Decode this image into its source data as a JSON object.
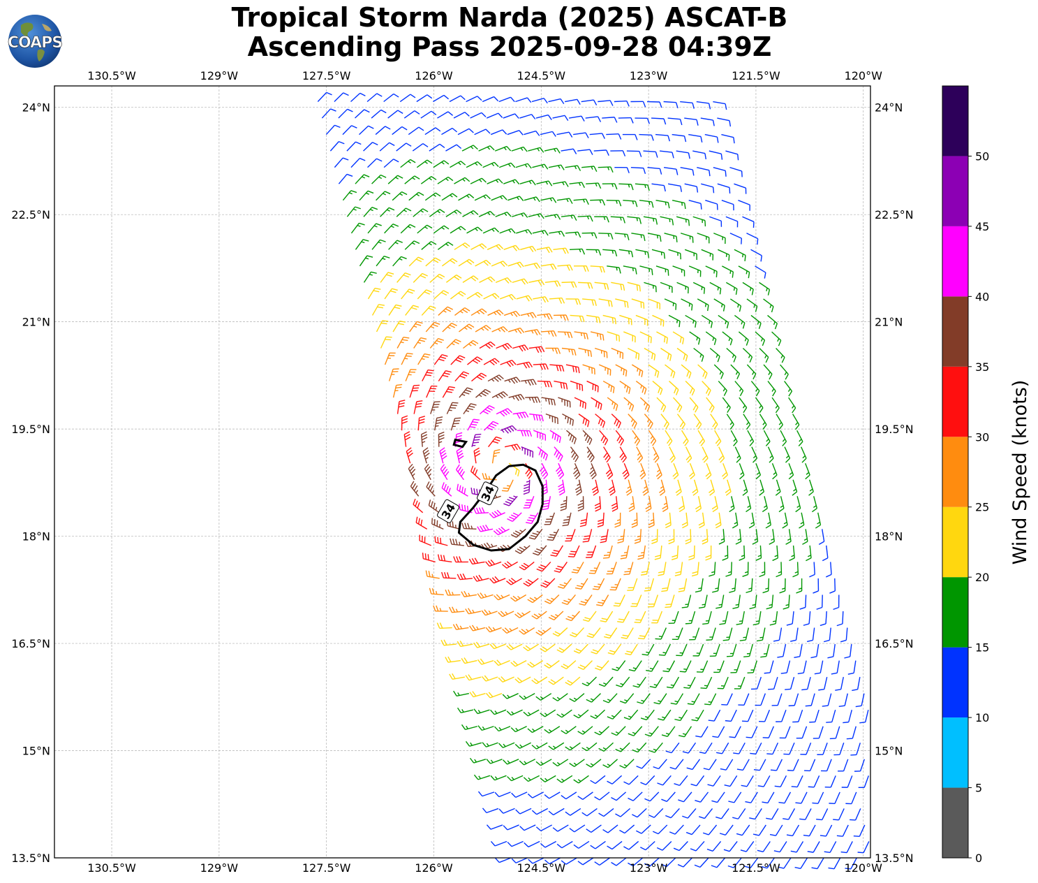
{
  "title": {
    "line1": "Tropical Storm Narda (2025) ASCAT-B",
    "line2": "Ascending Pass 2025-09-28 04:39Z"
  },
  "logo_text": "COAPS",
  "map": {
    "lon_range": [
      -131.3,
      -119.9
    ],
    "lat_range": [
      13.5,
      24.3
    ],
    "lon_tick_labels": [
      "130.5°W",
      "129°W",
      "127.5°W",
      "126°W",
      "124.5°W",
      "123°W",
      "121.5°W",
      "120°W"
    ],
    "lon_tick_values": [
      -130.5,
      -129,
      -127.5,
      -126,
      -124.5,
      -123,
      -121.5,
      -120
    ],
    "lat_tick_labels": [
      "13.5°N",
      "15°N",
      "16.5°N",
      "18°N",
      "19.5°N",
      "21°N",
      "22.5°N",
      "24°N"
    ],
    "lat_tick_values": [
      13.5,
      15,
      16.5,
      18,
      19.5,
      21,
      22.5,
      24
    ],
    "gridlines": true,
    "storm_center": {
      "lon": -125.05,
      "lat": 18.95
    },
    "contour_label": "34",
    "contour_value_knots": 34
  },
  "colorbar": {
    "label": "Wind Speed (knots)",
    "tick_labels": [
      "0",
      "5",
      "10",
      "15",
      "20",
      "25",
      "30",
      "35",
      "40",
      "45",
      "50"
    ],
    "bins": [
      {
        "min": 0,
        "max": 5,
        "color": "#5a5a5a"
      },
      {
        "min": 5,
        "max": 10,
        "color": "#00bfff"
      },
      {
        "min": 10,
        "max": 15,
        "color": "#0033ff"
      },
      {
        "min": 15,
        "max": 20,
        "color": "#009600"
      },
      {
        "min": 20,
        "max": 25,
        "color": "#ffd70f"
      },
      {
        "min": 25,
        "max": 30,
        "color": "#ff8c0f"
      },
      {
        "min": 30,
        "max": 35,
        "color": "#ff0f0f"
      },
      {
        "min": 35,
        "max": 40,
        "color": "#823c28"
      },
      {
        "min": 40,
        "max": 45,
        "color": "#ff00ff"
      },
      {
        "min": 45,
        "max": 50,
        "color": "#8c00b4"
      },
      {
        "min": 50,
        "max": 55,
        "color": "#2d005a"
      }
    ]
  }
}
